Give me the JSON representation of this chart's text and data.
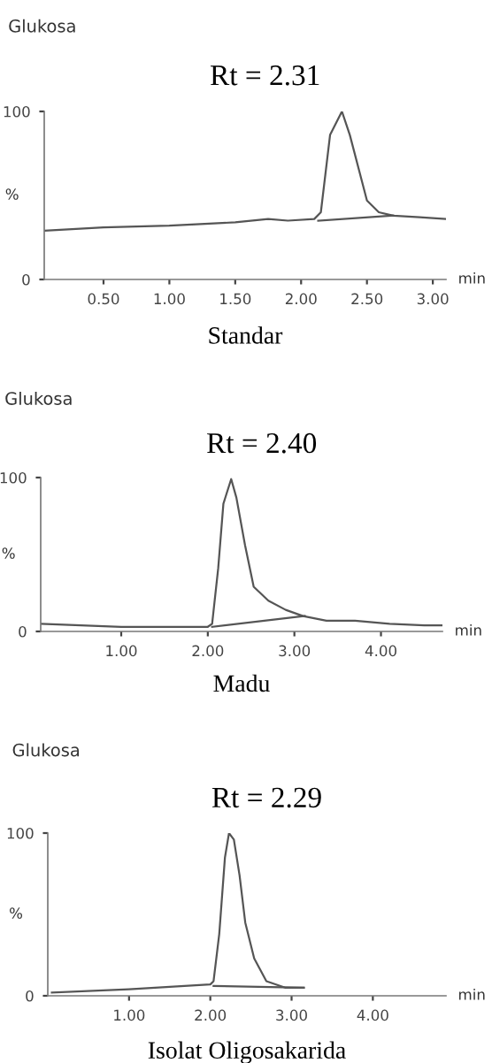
{
  "chart_data": [
    {
      "type": "line",
      "title": "Glukosa",
      "subtitle": "Rt = 2.31",
      "ylabel": "%",
      "xlabel": "min",
      "annotations": [
        "Standar"
      ],
      "xlim": [
        0.05,
        3.1
      ],
      "ylim": [
        0,
        100
      ],
      "yticks": [
        0,
        100
      ],
      "xticks": [
        {
          "value": 0.5,
          "label": "0.50"
        },
        {
          "value": 1.0,
          "label": "1.00"
        },
        {
          "value": 1.5,
          "label": "1.50"
        },
        {
          "value": 2.0,
          "label": "2.00"
        },
        {
          "value": 2.5,
          "label": "2.50"
        },
        {
          "value": 3.0,
          "label": "3.00"
        }
      ],
      "series": [
        {
          "color": "#555555",
          "x": [
            0.05,
            0.5,
            1.0,
            1.5,
            1.75,
            1.9,
            2.1,
            2.15,
            2.22,
            2.31,
            2.37,
            2.44,
            2.5,
            2.59,
            2.7,
            2.9,
            3.1
          ],
          "values": [
            29,
            31,
            32,
            34,
            36,
            35,
            36,
            40,
            86,
            100,
            86,
            65,
            47,
            40,
            38,
            37,
            36
          ]
        },
        {
          "color": "#555555",
          "x": [
            2.13,
            2.7
          ],
          "values": [
            35,
            38
          ]
        }
      ]
    },
    {
      "type": "line",
      "title": "Glukosa",
      "subtitle": "Rt = 2.40",
      "ylabel": "%",
      "xlabel": "min",
      "annotations": [
        "Madu"
      ],
      "xlim": [
        0.07,
        4.71
      ],
      "ylim": [
        0,
        100
      ],
      "yticks": [
        0,
        100
      ],
      "xticks": [
        {
          "value": 1.0,
          "label": "1.00"
        },
        {
          "value": 2.0,
          "label": "2.00"
        },
        {
          "value": 3.0,
          "label": "3.00"
        },
        {
          "value": 4.0,
          "label": "4.00"
        }
      ],
      "series": [
        {
          "color": "#555555",
          "x": [
            0.07,
            1.0,
            2.0,
            2.05,
            2.12,
            2.18,
            2.27,
            2.33,
            2.43,
            2.53,
            2.7,
            2.9,
            3.1,
            3.37,
            3.7,
            4.1,
            4.5,
            4.7
          ],
          "values": [
            5,
            3,
            3,
            5,
            41,
            83,
            99,
            87,
            56,
            29,
            20,
            14,
            10,
            7,
            7,
            5,
            4,
            4
          ]
        },
        {
          "color": "#555555",
          "x": [
            2.05,
            3.12
          ],
          "values": [
            3,
            10
          ]
        }
      ]
    },
    {
      "type": "line",
      "title": "Glukosa",
      "subtitle": "Rt = 2.29",
      "ylabel": "%",
      "xlabel": "min",
      "annotations": [
        "Isolat Oligosakarida"
      ],
      "xlim": [
        0.0,
        4.9
      ],
      "ylim": [
        0,
        100
      ],
      "yticks": [
        0,
        100
      ],
      "xticks": [
        {
          "value": 1.0,
          "label": "1.00"
        },
        {
          "value": 2.0,
          "label": "2.00"
        },
        {
          "value": 3.0,
          "label": "3.00"
        },
        {
          "value": 4.0,
          "label": "4.00"
        }
      ],
      "series": [
        {
          "color": "#555555",
          "x": [
            0.05,
            1.0,
            2.0,
            2.04,
            2.11,
            2.18,
            2.23,
            2.29,
            2.36,
            2.43,
            2.54,
            2.69,
            2.92,
            3.15
          ],
          "values": [
            2,
            4,
            7,
            9,
            38,
            85,
            100,
            96,
            74,
            45,
            23,
            9,
            5,
            5
          ]
        },
        {
          "color": "#555555",
          "x": [
            2.04,
            3.15
          ],
          "values": [
            6,
            5
          ]
        }
      ]
    }
  ]
}
